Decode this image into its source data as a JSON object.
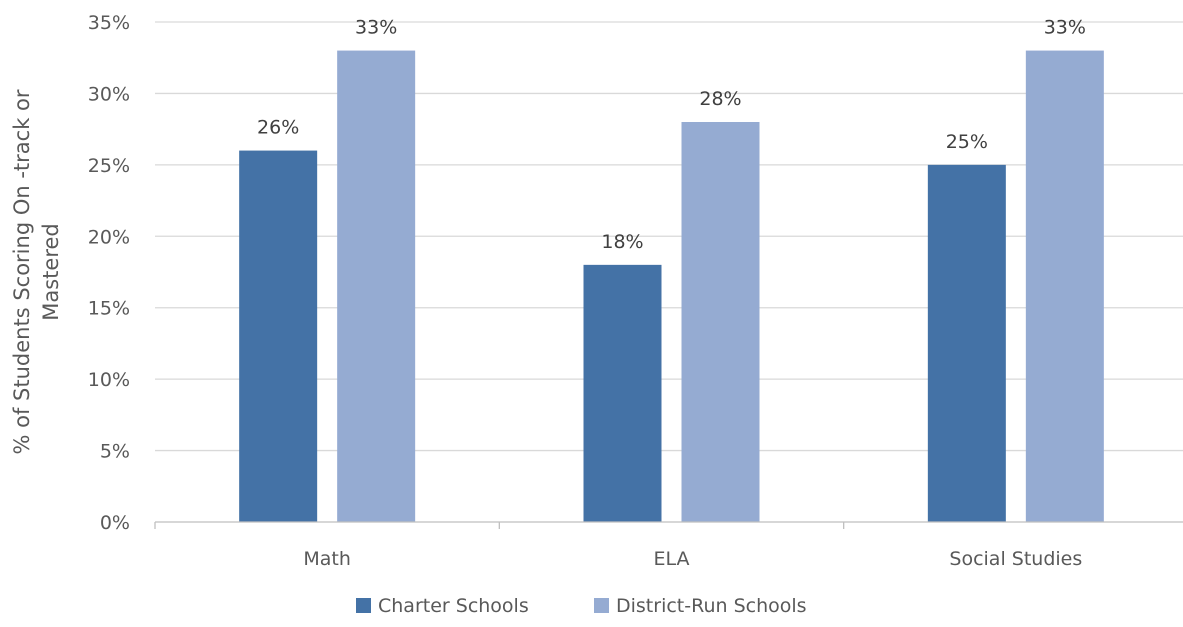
{
  "chart_data": {
    "type": "bar",
    "title": "",
    "xlabel": "",
    "ylabel_lines": [
      "% of Students Scoring On -track or",
      "Mastered"
    ],
    "categories": [
      "Math",
      "ELA",
      "Social Studies"
    ],
    "series": [
      {
        "name": "Charter Schools",
        "color": "#4472a6",
        "values": [
          26,
          18,
          25
        ]
      },
      {
        "name": "District-Run Schools",
        "color": "#95abd2",
        "values": [
          33,
          28,
          33
        ]
      }
    ],
    "ylim": [
      0,
      35
    ],
    "yticks": [
      0,
      5,
      10,
      15,
      20,
      25,
      30,
      35
    ],
    "value_suffix": "%",
    "grid": true,
    "legend_position": "bottom-center"
  }
}
